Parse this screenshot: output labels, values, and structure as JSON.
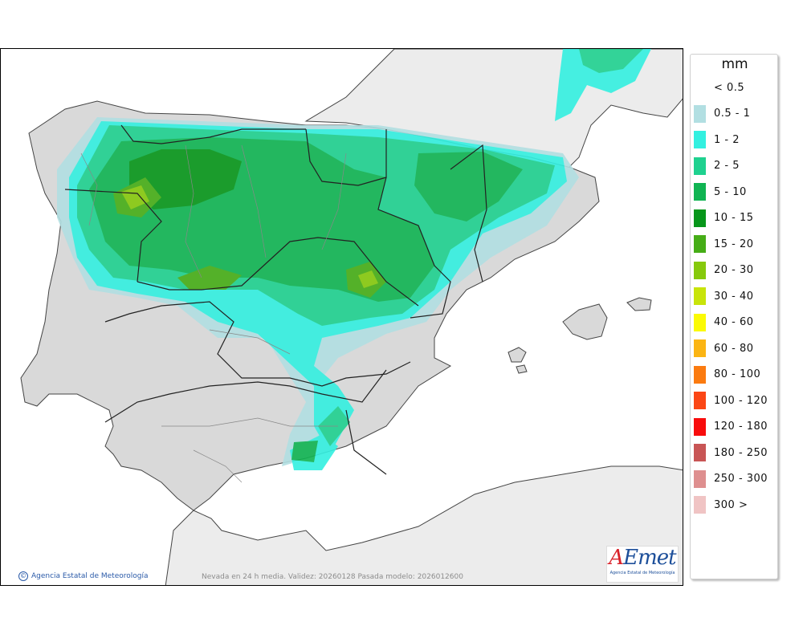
{
  "legend": {
    "unit": "mm",
    "bins": [
      {
        "label": "< 0.5",
        "color": null
      },
      {
        "label": "0.5 - 1",
        "color": "#b2dfe2"
      },
      {
        "label": "1 - 2",
        "color": "#33f0e0"
      },
      {
        "label": "2 - 5",
        "color": "#1fd18f"
      },
      {
        "label": "5 - 10",
        "color": "#10b452"
      },
      {
        "label": "10 - 15",
        "color": "#07961a"
      },
      {
        "label": "15 - 20",
        "color": "#46ad17"
      },
      {
        "label": "20 - 30",
        "color": "#86c90c"
      },
      {
        "label": "30 - 40",
        "color": "#c8e40a"
      },
      {
        "label": "40 - 60",
        "color": "#fbfa05"
      },
      {
        "label": "60 - 80",
        "color": "#fbb514"
      },
      {
        "label": "80 - 100",
        "color": "#fb7b10"
      },
      {
        "label": "100 - 120",
        "color": "#fb4615"
      },
      {
        "label": "120 - 180",
        "color": "#f80c0c"
      },
      {
        "label": "180 - 250",
        "color": "#c85555"
      },
      {
        "label": "250 - 300",
        "color": "#de8f8f"
      },
      {
        "label": "300 >",
        "color": "#f0c4c4"
      }
    ]
  },
  "footer": {
    "credit": "Agencia Estatal de Meteorología",
    "caption": "Nevada en 24 h media. Validez: 20260128 Pasada modelo: 2026012600"
  },
  "logo": {
    "word_lead": "A",
    "word_rest": "Emet",
    "subtitle": "Agencia Estatal de Meteorología"
  },
  "map": {
    "sea_color": "#ffffff",
    "land_color": "#d9d9d9",
    "outside_land_color": "#ececec"
  }
}
